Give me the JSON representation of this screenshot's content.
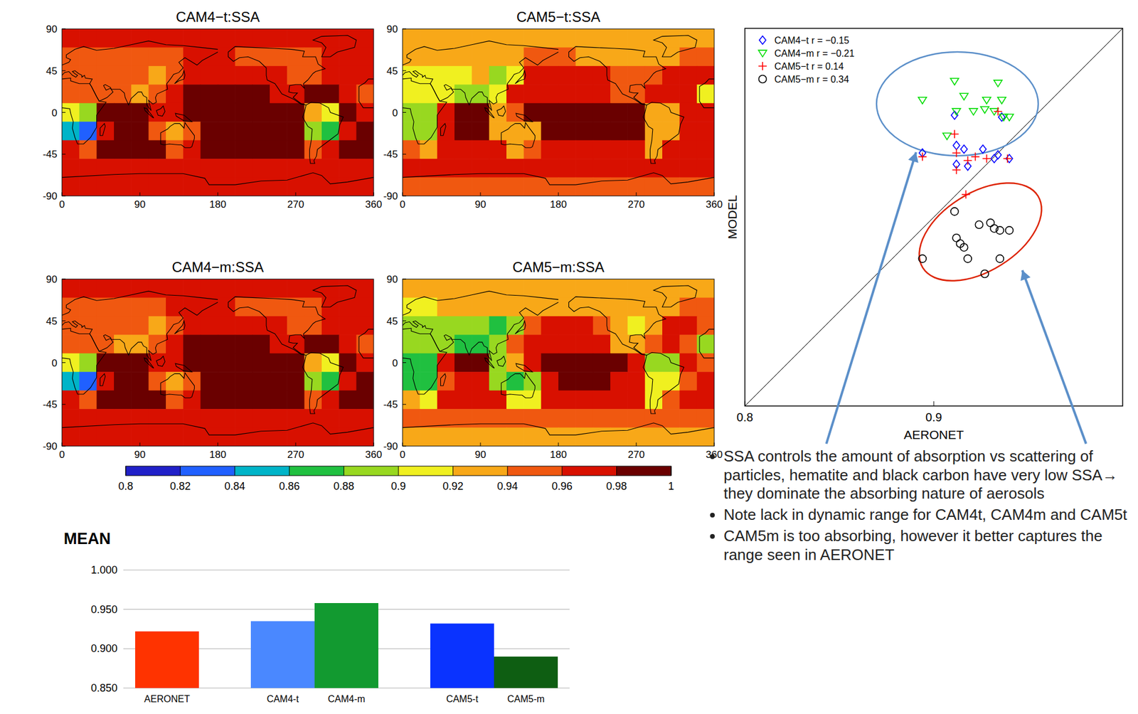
{
  "chart_data": [
    {
      "type": "heatmap",
      "title": "CAM4−t:SSA",
      "xlim": [
        0,
        360
      ],
      "ylim": [
        -90,
        90
      ],
      "xticks": [
        0,
        90,
        180,
        270,
        360
      ],
      "yticks": [
        -90,
        -45,
        0,
        45,
        90
      ],
      "cells": [
        [
          0.96,
          0.96,
          0.96,
          0.96,
          0.96,
          0.96,
          0.96,
          0.96,
          0.96,
          0.96,
          0.96,
          0.96,
          0.96,
          0.96,
          0.96,
          0.96,
          0.96,
          0.96
        ],
        [
          0.94,
          0.94,
          0.95,
          0.95,
          0.95,
          0.95,
          0.95,
          0.96,
          0.96,
          0.96,
          0.95,
          0.95,
          0.95,
          0.95,
          0.95,
          0.96,
          0.97,
          0.97
        ],
        [
          0.94,
          0.94,
          0.94,
          0.95,
          0.95,
          0.93,
          0.94,
          0.97,
          0.97,
          0.97,
          0.97,
          0.97,
          0.96,
          0.95,
          0.95,
          0.97,
          0.97,
          0.97
        ],
        [
          0.95,
          0.95,
          0.95,
          0.94,
          0.93,
          0.94,
          0.97,
          0.98,
          0.98,
          0.98,
          0.98,
          0.98,
          0.97,
          0.96,
          0.98,
          0.98,
          0.97,
          0.95
        ],
        [
          0.9,
          0.88,
          0.98,
          0.99,
          0.99,
          0.96,
          0.97,
          0.99,
          0.99,
          0.99,
          0.99,
          0.99,
          0.99,
          0.99,
          0.93,
          0.9,
          0.98,
          0.97
        ],
        [
          0.84,
          0.82,
          0.97,
          0.99,
          0.99,
          0.95,
          0.93,
          0.94,
          0.99,
          0.99,
          0.99,
          0.99,
          0.99,
          0.99,
          0.89,
          0.87,
          0.97,
          0.98
        ],
        [
          0.96,
          0.95,
          0.98,
          0.98,
          0.98,
          0.98,
          0.95,
          0.96,
          0.98,
          0.98,
          0.98,
          0.98,
          0.98,
          0.98,
          0.95,
          0.97,
          0.98,
          0.98
        ],
        [
          0.97,
          0.97,
          0.97,
          0.97,
          0.97,
          0.97,
          0.97,
          0.97,
          0.97,
          0.97,
          0.97,
          0.97,
          0.97,
          0.97,
          0.97,
          0.97,
          0.97,
          0.97
        ],
        [
          0.97,
          0.97,
          0.97,
          0.97,
          0.97,
          0.97,
          0.97,
          0.97,
          0.97,
          0.97,
          0.97,
          0.97,
          0.97,
          0.97,
          0.97,
          0.97,
          0.97,
          0.97
        ]
      ]
    },
    {
      "type": "heatmap",
      "title": "CAM5−t:SSA",
      "xlim": [
        0,
        360
      ],
      "ylim": [
        -90,
        90
      ],
      "xticks": [
        0,
        90,
        180,
        270,
        360
      ],
      "yticks": [
        -90,
        -45,
        0,
        45,
        90
      ],
      "cells": [
        [
          0.93,
          0.93,
          0.93,
          0.93,
          0.93,
          0.93,
          0.93,
          0.93,
          0.93,
          0.93,
          0.93,
          0.93,
          0.93,
          0.93,
          0.93,
          0.93,
          0.93,
          0.93
        ],
        [
          0.92,
          0.92,
          0.93,
          0.93,
          0.93,
          0.93,
          0.93,
          0.94,
          0.94,
          0.94,
          0.93,
          0.93,
          0.93,
          0.93,
          0.93,
          0.93,
          0.95,
          0.95
        ],
        [
          0.91,
          0.91,
          0.91,
          0.91,
          0.92,
          0.89,
          0.91,
          0.96,
          0.96,
          0.96,
          0.96,
          0.96,
          0.94,
          0.94,
          0.94,
          0.96,
          0.96,
          0.96
        ],
        [
          0.91,
          0.91,
          0.91,
          0.89,
          0.89,
          0.91,
          0.96,
          0.97,
          0.97,
          0.97,
          0.97,
          0.97,
          0.95,
          0.94,
          0.96,
          0.97,
          0.96,
          0.91
        ],
        [
          0.89,
          0.89,
          0.97,
          0.98,
          0.98,
          0.93,
          0.95,
          0.98,
          0.98,
          0.98,
          0.98,
          0.98,
          0.98,
          0.98,
          0.92,
          0.92,
          0.97,
          0.96
        ],
        [
          0.88,
          0.89,
          0.96,
          0.98,
          0.98,
          0.93,
          0.92,
          0.93,
          0.98,
          0.98,
          0.98,
          0.98,
          0.98,
          0.98,
          0.92,
          0.92,
          0.96,
          0.97
        ],
        [
          0.94,
          0.93,
          0.97,
          0.97,
          0.97,
          0.97,
          0.93,
          0.94,
          0.97,
          0.97,
          0.97,
          0.97,
          0.97,
          0.97,
          0.93,
          0.96,
          0.97,
          0.97
        ],
        [
          0.96,
          0.96,
          0.96,
          0.96,
          0.96,
          0.96,
          0.96,
          0.96,
          0.96,
          0.96,
          0.96,
          0.96,
          0.96,
          0.96,
          0.96,
          0.96,
          0.96,
          0.96
        ],
        [
          0.94,
          0.94,
          0.94,
          0.94,
          0.94,
          0.94,
          0.94,
          0.94,
          0.94,
          0.94,
          0.94,
          0.94,
          0.94,
          0.94,
          0.94,
          0.94,
          0.94,
          0.94
        ]
      ]
    },
    {
      "type": "heatmap",
      "title": "CAM4−m:SSA",
      "xlim": [
        0,
        360
      ],
      "ylim": [
        -90,
        90
      ],
      "xticks": [
        0,
        90,
        180,
        270,
        360
      ],
      "yticks": [
        -90,
        -45,
        0,
        45,
        90
      ],
      "cells": [
        [
          0.96,
          0.96,
          0.96,
          0.96,
          0.96,
          0.96,
          0.96,
          0.96,
          0.96,
          0.96,
          0.96,
          0.96,
          0.96,
          0.96,
          0.96,
          0.96,
          0.96,
          0.96
        ],
        [
          0.95,
          0.95,
          0.95,
          0.95,
          0.95,
          0.95,
          0.96,
          0.96,
          0.96,
          0.96,
          0.95,
          0.95,
          0.95,
          0.95,
          0.95,
          0.96,
          0.97,
          0.97
        ],
        [
          0.94,
          0.94,
          0.94,
          0.95,
          0.94,
          0.92,
          0.94,
          0.97,
          0.97,
          0.97,
          0.97,
          0.97,
          0.96,
          0.95,
          0.95,
          0.97,
          0.97,
          0.97
        ],
        [
          0.95,
          0.95,
          0.95,
          0.93,
          0.93,
          0.94,
          0.97,
          0.98,
          0.98,
          0.98,
          0.98,
          0.98,
          0.97,
          0.96,
          0.98,
          0.98,
          0.97,
          0.95
        ],
        [
          0.91,
          0.89,
          0.98,
          0.99,
          0.99,
          0.96,
          0.97,
          0.99,
          0.99,
          0.99,
          0.99,
          0.99,
          0.99,
          0.99,
          0.93,
          0.91,
          0.98,
          0.97
        ],
        [
          0.85,
          0.83,
          0.97,
          0.99,
          0.99,
          0.95,
          0.93,
          0.94,
          0.99,
          0.99,
          0.99,
          0.99,
          0.99,
          0.99,
          0.89,
          0.86,
          0.97,
          0.98
        ],
        [
          0.96,
          0.95,
          0.98,
          0.98,
          0.98,
          0.98,
          0.95,
          0.96,
          0.98,
          0.98,
          0.98,
          0.98,
          0.98,
          0.98,
          0.95,
          0.97,
          0.98,
          0.98
        ],
        [
          0.97,
          0.97,
          0.97,
          0.97,
          0.97,
          0.97,
          0.97,
          0.97,
          0.97,
          0.97,
          0.97,
          0.97,
          0.97,
          0.97,
          0.97,
          0.97,
          0.97,
          0.97
        ],
        [
          0.97,
          0.97,
          0.97,
          0.97,
          0.97,
          0.97,
          0.97,
          0.97,
          0.97,
          0.97,
          0.97,
          0.97,
          0.97,
          0.97,
          0.97,
          0.97,
          0.97,
          0.97
        ]
      ]
    },
    {
      "type": "heatmap",
      "title": "CAM5−m:SSA",
      "xlim": [
        0,
        360
      ],
      "ylim": [
        -90,
        90
      ],
      "xticks": [
        0,
        90,
        180,
        270,
        360
      ],
      "yticks": [
        -90,
        -45,
        0,
        45,
        90
      ],
      "cells": [
        [
          0.93,
          0.93,
          0.93,
          0.93,
          0.93,
          0.93,
          0.93,
          0.93,
          0.93,
          0.93,
          0.93,
          0.93,
          0.93,
          0.93,
          0.93,
          0.93,
          0.93,
          0.93
        ],
        [
          0.9,
          0.91,
          0.92,
          0.92,
          0.92,
          0.92,
          0.92,
          0.93,
          0.93,
          0.93,
          0.92,
          0.92,
          0.92,
          0.92,
          0.92,
          0.93,
          0.95,
          0.94
        ],
        [
          0.89,
          0.89,
          0.89,
          0.89,
          0.89,
          0.86,
          0.88,
          0.95,
          0.96,
          0.96,
          0.96,
          0.95,
          0.92,
          0.91,
          0.92,
          0.96,
          0.96,
          0.95
        ],
        [
          0.88,
          0.88,
          0.88,
          0.86,
          0.86,
          0.88,
          0.95,
          0.97,
          0.97,
          0.97,
          0.97,
          0.96,
          0.93,
          0.92,
          0.95,
          0.97,
          0.95,
          0.88
        ],
        [
          0.87,
          0.87,
          0.96,
          0.98,
          0.98,
          0.89,
          0.92,
          0.97,
          0.98,
          0.98,
          0.98,
          0.98,
          0.98,
          0.97,
          0.89,
          0.89,
          0.96,
          0.95
        ],
        [
          0.86,
          0.87,
          0.95,
          0.97,
          0.97,
          0.88,
          0.87,
          0.88,
          0.97,
          0.98,
          0.98,
          0.98,
          0.97,
          0.97,
          0.9,
          0.9,
          0.95,
          0.96
        ],
        [
          0.92,
          0.91,
          0.96,
          0.96,
          0.96,
          0.96,
          0.9,
          0.91,
          0.96,
          0.96,
          0.96,
          0.96,
          0.96,
          0.96,
          0.91,
          0.95,
          0.96,
          0.96
        ],
        [
          0.95,
          0.95,
          0.95,
          0.95,
          0.95,
          0.95,
          0.95,
          0.95,
          0.95,
          0.95,
          0.95,
          0.95,
          0.95,
          0.95,
          0.95,
          0.95,
          0.95,
          0.95
        ],
        [
          0.93,
          0.93,
          0.93,
          0.93,
          0.93,
          0.93,
          0.93,
          0.93,
          0.93,
          0.93,
          0.93,
          0.93,
          0.93,
          0.93,
          0.93,
          0.93,
          0.93,
          0.93
        ]
      ]
    },
    {
      "type": "colorbar",
      "range": [
        0.8,
        1
      ],
      "ticks": [
        0.8,
        0.82,
        0.84,
        0.86,
        0.88,
        0.9,
        0.92,
        0.94,
        0.96,
        0.98,
        1
      ],
      "colors": [
        "#2020c8",
        "#2060ff",
        "#00b4c8",
        "#20c040",
        "#98d820",
        "#f0f020",
        "#f8a818",
        "#f05810",
        "#d81000",
        "#6a0000"
      ]
    },
    {
      "type": "bar",
      "title": "MEAN",
      "categories": [
        "AERONET",
        "CAM4-t",
        "CAM4-m",
        "CAM5-t",
        "CAM5-m"
      ],
      "values": [
        0.922,
        0.935,
        0.958,
        0.932,
        0.89
      ],
      "colors": [
        "#ff3300",
        "#4a88ff",
        "#129a30",
        "#0a33ff",
        "#0e5e12"
      ],
      "ylim": [
        0.85,
        1.0
      ],
      "yticks": [
        {
          "value": 0.85,
          "label": "0.850"
        },
        {
          "value": 0.9,
          "label": "0.900"
        },
        {
          "value": 0.95,
          "label": "0.950"
        },
        {
          "value": 1.0,
          "label": "1.000"
        }
      ],
      "grid": true
    },
    {
      "type": "scatter",
      "x_label": "AERONET",
      "y_label": "MODEL",
      "xlim": [
        0.8,
        1.0
      ],
      "ylim": [
        0.8,
        1.0
      ],
      "xticks": [
        0.8,
        0.9
      ],
      "tick_labels": "x",
      "legend": "upper left",
      "series": [
        {
          "name": "CAM4−t r = −0.15",
          "color": "#0000ff",
          "marker": "diamond",
          "x": [
            0.894,
            0.911,
            0.912,
            0.916,
            0.918,
            0.912,
            0.926,
            0.932,
            0.934,
            0.94,
            0.936
          ],
          "values": [
            0.934,
            0.954,
            0.938,
            0.936,
            0.927,
            0.928,
            0.936,
            0.931,
            0.933,
            0.931,
            0.953
          ]
        },
        {
          "name": "CAM4−m r = −0.21",
          "color": "#00dd00",
          "marker": "triangle-down",
          "x": [
            0.894,
            0.911,
            0.916,
            0.921,
            0.912,
            0.927,
            0.932,
            0.936,
            0.934,
            0.94,
            0.937,
            0.907,
            0.928
          ],
          "values": [
            0.962,
            0.972,
            0.964,
            0.956,
            0.956,
            0.957,
            0.956,
            0.962,
            0.971,
            0.953,
            0.953,
            0.943,
            0.962
          ]
        },
        {
          "name": "CAM5−t r = 0.14",
          "color": "#ff0000",
          "marker": "plus",
          "x": [
            0.894,
            0.911,
            0.912,
            0.918,
            0.912,
            0.922,
            0.934,
            0.939,
            0.928,
            0.917
          ],
          "values": [
            0.932,
            0.944,
            0.934,
            0.93,
            0.925,
            0.932,
            0.956,
            0.931,
            0.931,
            0.912
          ]
        },
        {
          "name": "CAM5−m r = 0.34",
          "color": "#000000",
          "marker": "circle",
          "x": [
            0.894,
            0.911,
            0.912,
            0.914,
            0.916,
            0.918,
            0.924,
            0.93,
            0.932,
            0.935,
            0.94,
            0.927,
            0.935
          ],
          "values": [
            0.878,
            0.903,
            0.889,
            0.886,
            0.884,
            0.878,
            0.896,
            0.897,
            0.894,
            0.893,
            0.893,
            0.87,
            0.878
          ]
        }
      ]
    }
  ],
  "notes": [
    "SSA controls the amount of absorption vs scattering of particles, hematite and black carbon have very low SSA→ they dominate the absorbing nature of aerosols",
    "Note lack in dynamic range for CAM4t, CAM4m and CAM5t",
    "CAM5m is too absorbing, however it better captures the range seen in AERONET"
  ]
}
